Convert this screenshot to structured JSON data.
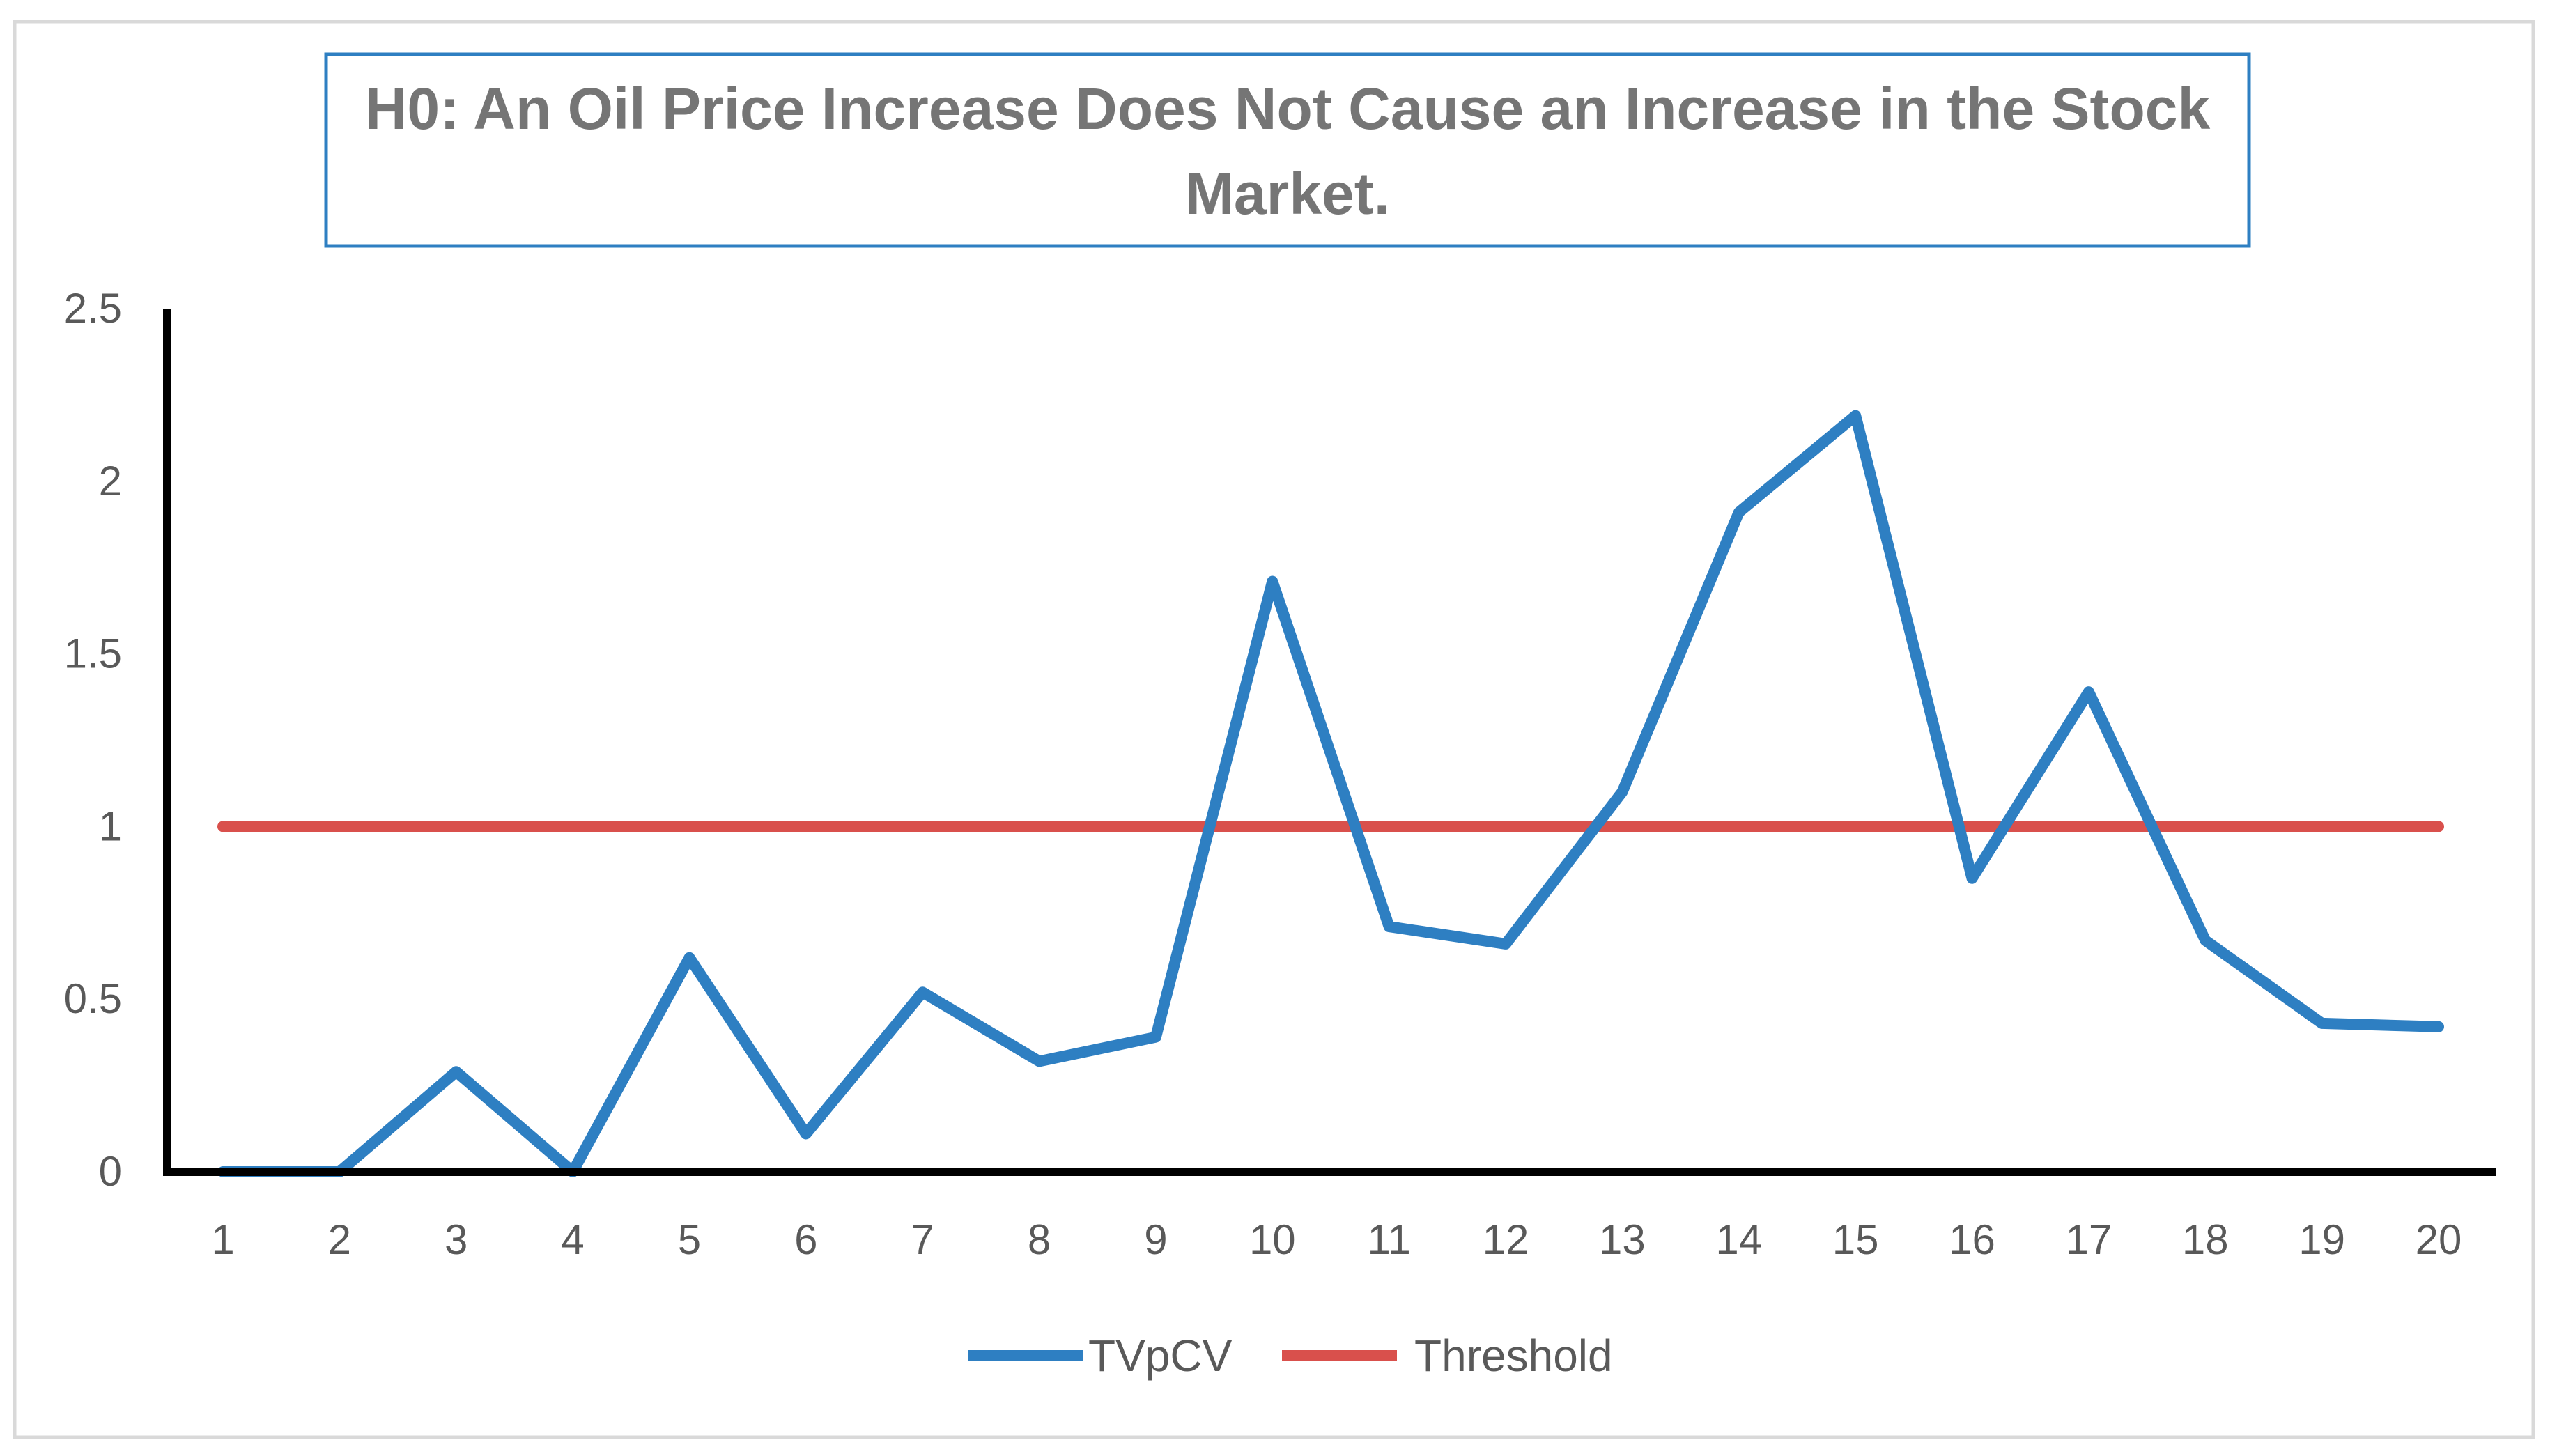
{
  "chart_data": {
    "type": "line",
    "title_lines": [
      "H0: An Oil Price Increase Does Not Cause an Increase in the Stock",
      "Market."
    ],
    "categories": [
      "1",
      "2",
      "3",
      "4",
      "5",
      "6",
      "7",
      "8",
      "9",
      "10",
      "11",
      "12",
      "13",
      "14",
      "15",
      "16",
      "17",
      "18",
      "19",
      "20"
    ],
    "series": [
      {
        "name": "TVpCV",
        "color": "#2e7fc2",
        "values": [
          0,
          0,
          0.29,
          0,
          0.62,
          0.11,
          0.52,
          0.32,
          0.39,
          1.71,
          0.71,
          0.66,
          1.1,
          1.91,
          2.19,
          0.85,
          1.39,
          0.67,
          0.43,
          0.42
        ]
      },
      {
        "name": "Threshold",
        "color": "#d9504c",
        "values": [
          1,
          1,
          1,
          1,
          1,
          1,
          1,
          1,
          1,
          1,
          1,
          1,
          1,
          1,
          1,
          1,
          1,
          1,
          1,
          1
        ]
      }
    ],
    "ylim": [
      0,
      2.5
    ],
    "yticks": [
      "0",
      "0.5",
      "1",
      "1.5",
      "2",
      "2.5"
    ],
    "ytick_values": [
      0,
      0.5,
      1,
      1.5,
      2,
      2.5
    ],
    "xlabel": "",
    "ylabel": "",
    "grid": false,
    "legend_position": "bottom-center",
    "title_box_color": "#2e7fc2"
  }
}
